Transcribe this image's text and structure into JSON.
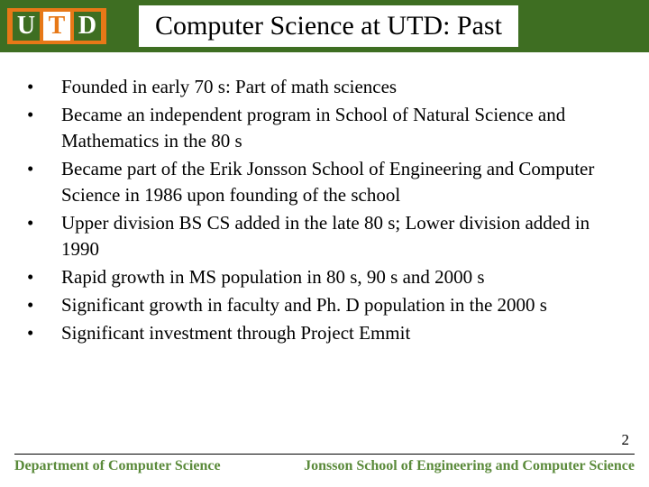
{
  "header": {
    "logo_letters": [
      "U",
      "T",
      "D"
    ],
    "title": "Computer Science at UTD: Past",
    "bar_color": "#3e6e22",
    "logo_bg": "#e77817"
  },
  "bullets": [
    "Founded in early 70 s: Part of math sciences",
    "Became an independent program in School of Natural Science and Mathematics in the 80 s",
    "Became part of the Erik Jonsson School of Engineering and Computer Science in 1986 upon founding of the school",
    "Upper division BS CS added in the late 80 s; Lower division added in 1990",
    "Rapid growth in MS population in 80 s, 90 s and 2000 s",
    "Significant growth in faculty and Ph. D population in the 2000 s",
    "Significant investment through Project Emmit"
  ],
  "footer": {
    "left": "Department of Computer Science",
    "right": "Jonsson School of Engineering and Computer Science",
    "page_number": "2",
    "text_color": "#5a8a3a"
  },
  "styling": {
    "body_font": "Times New Roman",
    "title_fontsize": 30,
    "bullet_fontsize": 21,
    "footer_fontsize": 16
  }
}
